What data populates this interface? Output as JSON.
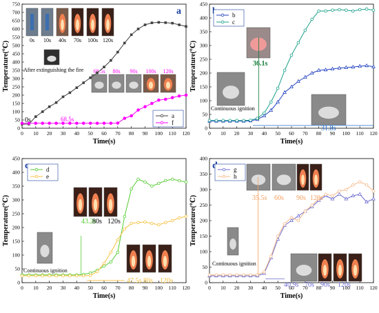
{
  "chart_data": [
    {
      "type": "line",
      "panel_label": "a",
      "xlabel": "Time(s)",
      "ylabel": "Temperature(℃)",
      "xlim": [
        0,
        120
      ],
      "ylim": [
        0,
        750
      ],
      "xticks": [
        0,
        10,
        20,
        30,
        40,
        50,
        60,
        70,
        80,
        90,
        100,
        110,
        120
      ],
      "yticks": [
        0,
        50,
        100,
        150,
        200,
        250,
        300,
        350,
        400,
        450,
        500,
        550,
        600,
        650,
        700,
        750
      ],
      "x": [
        0,
        5,
        10,
        15,
        20,
        25,
        30,
        35,
        40,
        45,
        50,
        55,
        60,
        65,
        70,
        75,
        80,
        85,
        90,
        95,
        100,
        105,
        110,
        115,
        120
      ],
      "series": [
        {
          "name": "a",
          "color": "#404040",
          "marker": "square",
          "values": [
            25,
            25,
            70,
            100,
            130,
            155,
            190,
            215,
            245,
            275,
            305,
            335,
            370,
            410,
            460,
            515,
            565,
            600,
            625,
            637,
            640,
            638,
            635,
            625,
            615
          ]
        },
        {
          "name": "f",
          "color": "#ff00ff",
          "marker": "circle",
          "values": [
            30,
            30,
            30,
            30,
            30,
            30,
            30,
            30,
            30,
            30,
            30,
            30,
            30,
            30,
            31,
            60,
            75,
            110,
            130,
            150,
            170,
            175,
            185,
            195,
            200
          ]
        }
      ],
      "annotations": [
        "0s",
        "68.5s",
        "After extinguishing the fire"
      ],
      "photo_labels_top": [
        "0s",
        "10s",
        "40s",
        "70s",
        "100s",
        "120s"
      ],
      "photo_labels_mid": [
        "68.5s",
        "80s",
        "90s",
        "100s",
        "120s"
      ]
    },
    {
      "type": "line",
      "panel_label": "b",
      "xlabel": "Time(s)",
      "ylabel": "Temperature(℃)",
      "xlim": [
        0,
        120
      ],
      "ylim": [
        0,
        450
      ],
      "xticks": [
        0,
        10,
        20,
        30,
        40,
        50,
        60,
        70,
        80,
        90,
        100,
        110,
        120
      ],
      "yticks": [
        0,
        50,
        100,
        150,
        200,
        250,
        300,
        350,
        400,
        450
      ],
      "x": [
        0,
        5,
        10,
        15,
        20,
        25,
        30,
        35,
        40,
        45,
        50,
        55,
        60,
        65,
        70,
        75,
        80,
        85,
        90,
        95,
        100,
        105,
        110,
        115,
        120
      ],
      "series": [
        {
          "name": "b",
          "color": "#1f3fbf",
          "marker": "triangle",
          "values": [
            26,
            26,
            26,
            26,
            26,
            26,
            27,
            32,
            45,
            65,
            95,
            130,
            150,
            170,
            185,
            200,
            210,
            212,
            215,
            218,
            220,
            222,
            225,
            227,
            223
          ]
        },
        {
          "name": "c",
          "color": "#1aa08a",
          "marker": "circle",
          "values": [
            28,
            28,
            28,
            28,
            28,
            28,
            29,
            36,
            55,
            95,
            145,
            210,
            265,
            310,
            355,
            395,
            425,
            425,
            428,
            430,
            428,
            425,
            430,
            432,
            428
          ]
        }
      ],
      "annotations": [
        "36.1s",
        "31.8s",
        "Continuous ignition"
      ]
    },
    {
      "type": "line",
      "panel_label": "c",
      "xlabel": "Time(s)",
      "ylabel": "Temperature(℃)",
      "xlim": [
        0,
        120
      ],
      "ylim": [
        0,
        450
      ],
      "xticks": [
        0,
        10,
        20,
        30,
        40,
        50,
        60,
        70,
        80,
        90,
        100,
        110,
        120
      ],
      "yticks": [
        0,
        50,
        100,
        150,
        200,
        250,
        300,
        350,
        400,
        450
      ],
      "x": [
        0,
        5,
        10,
        15,
        20,
        25,
        30,
        35,
        40,
        45,
        50,
        55,
        60,
        65,
        70,
        75,
        80,
        85,
        90,
        95,
        100,
        105,
        110,
        115,
        120
      ],
      "series": [
        {
          "name": "d",
          "color": "#55cc33",
          "marker": "circle",
          "values": [
            28,
            28,
            28,
            28,
            28,
            28,
            28,
            28,
            28,
            30,
            35,
            45,
            60,
            75,
            110,
            240,
            340,
            375,
            365,
            350,
            360,
            370,
            375,
            370,
            365
          ]
        },
        {
          "name": "e",
          "color": "#f5c040",
          "marker": "circle",
          "values": [
            25,
            25,
            25,
            25,
            25,
            25,
            25,
            25,
            25,
            25,
            26,
            40,
            70,
            110,
            155,
            195,
            215,
            218,
            220,
            215,
            210,
            218,
            225,
            235,
            240
          ]
        }
      ],
      "annotations": [
        "43.2s",
        "80s",
        "120s",
        "47.5s",
        "80s",
        "120s",
        "Continuous ignition"
      ]
    },
    {
      "type": "line",
      "panel_label": "d",
      "xlabel": "Time(s)",
      "ylabel": "Temperature(℃)",
      "xlim": [
        0,
        120
      ],
      "ylim": [
        0,
        400
      ],
      "xticks": [
        0,
        10,
        20,
        30,
        40,
        50,
        60,
        70,
        80,
        90,
        100,
        110,
        120
      ],
      "yticks": [
        0,
        50,
        100,
        150,
        200,
        250,
        300,
        350,
        400
      ],
      "x": [
        0,
        5,
        10,
        15,
        20,
        25,
        30,
        35,
        40,
        45,
        50,
        55,
        60,
        65,
        70,
        75,
        80,
        85,
        90,
        95,
        100,
        105,
        110,
        115,
        120
      ],
      "series": [
        {
          "name": "g",
          "color": "#6b6bd0",
          "marker": "triangle",
          "values": [
            22,
            22,
            22,
            22,
            22,
            22,
            22,
            22,
            30,
            80,
            140,
            185,
            200,
            215,
            230,
            245,
            265,
            280,
            270,
            285,
            270,
            280,
            285,
            260,
            270
          ]
        },
        {
          "name": "h",
          "color": "#f5b889",
          "marker": "circle",
          "values": [
            25,
            25,
            25,
            25,
            25,
            25,
            25,
            25,
            35,
            85,
            150,
            190,
            210,
            200,
            230,
            250,
            270,
            285,
            280,
            295,
            300,
            315,
            325,
            315,
            295
          ]
        }
      ],
      "annotations": [
        "35.5s",
        "60s",
        "90s",
        "120s",
        "40.9s",
        "70s",
        "90s",
        "120s",
        "Continuous ignition"
      ]
    }
  ]
}
